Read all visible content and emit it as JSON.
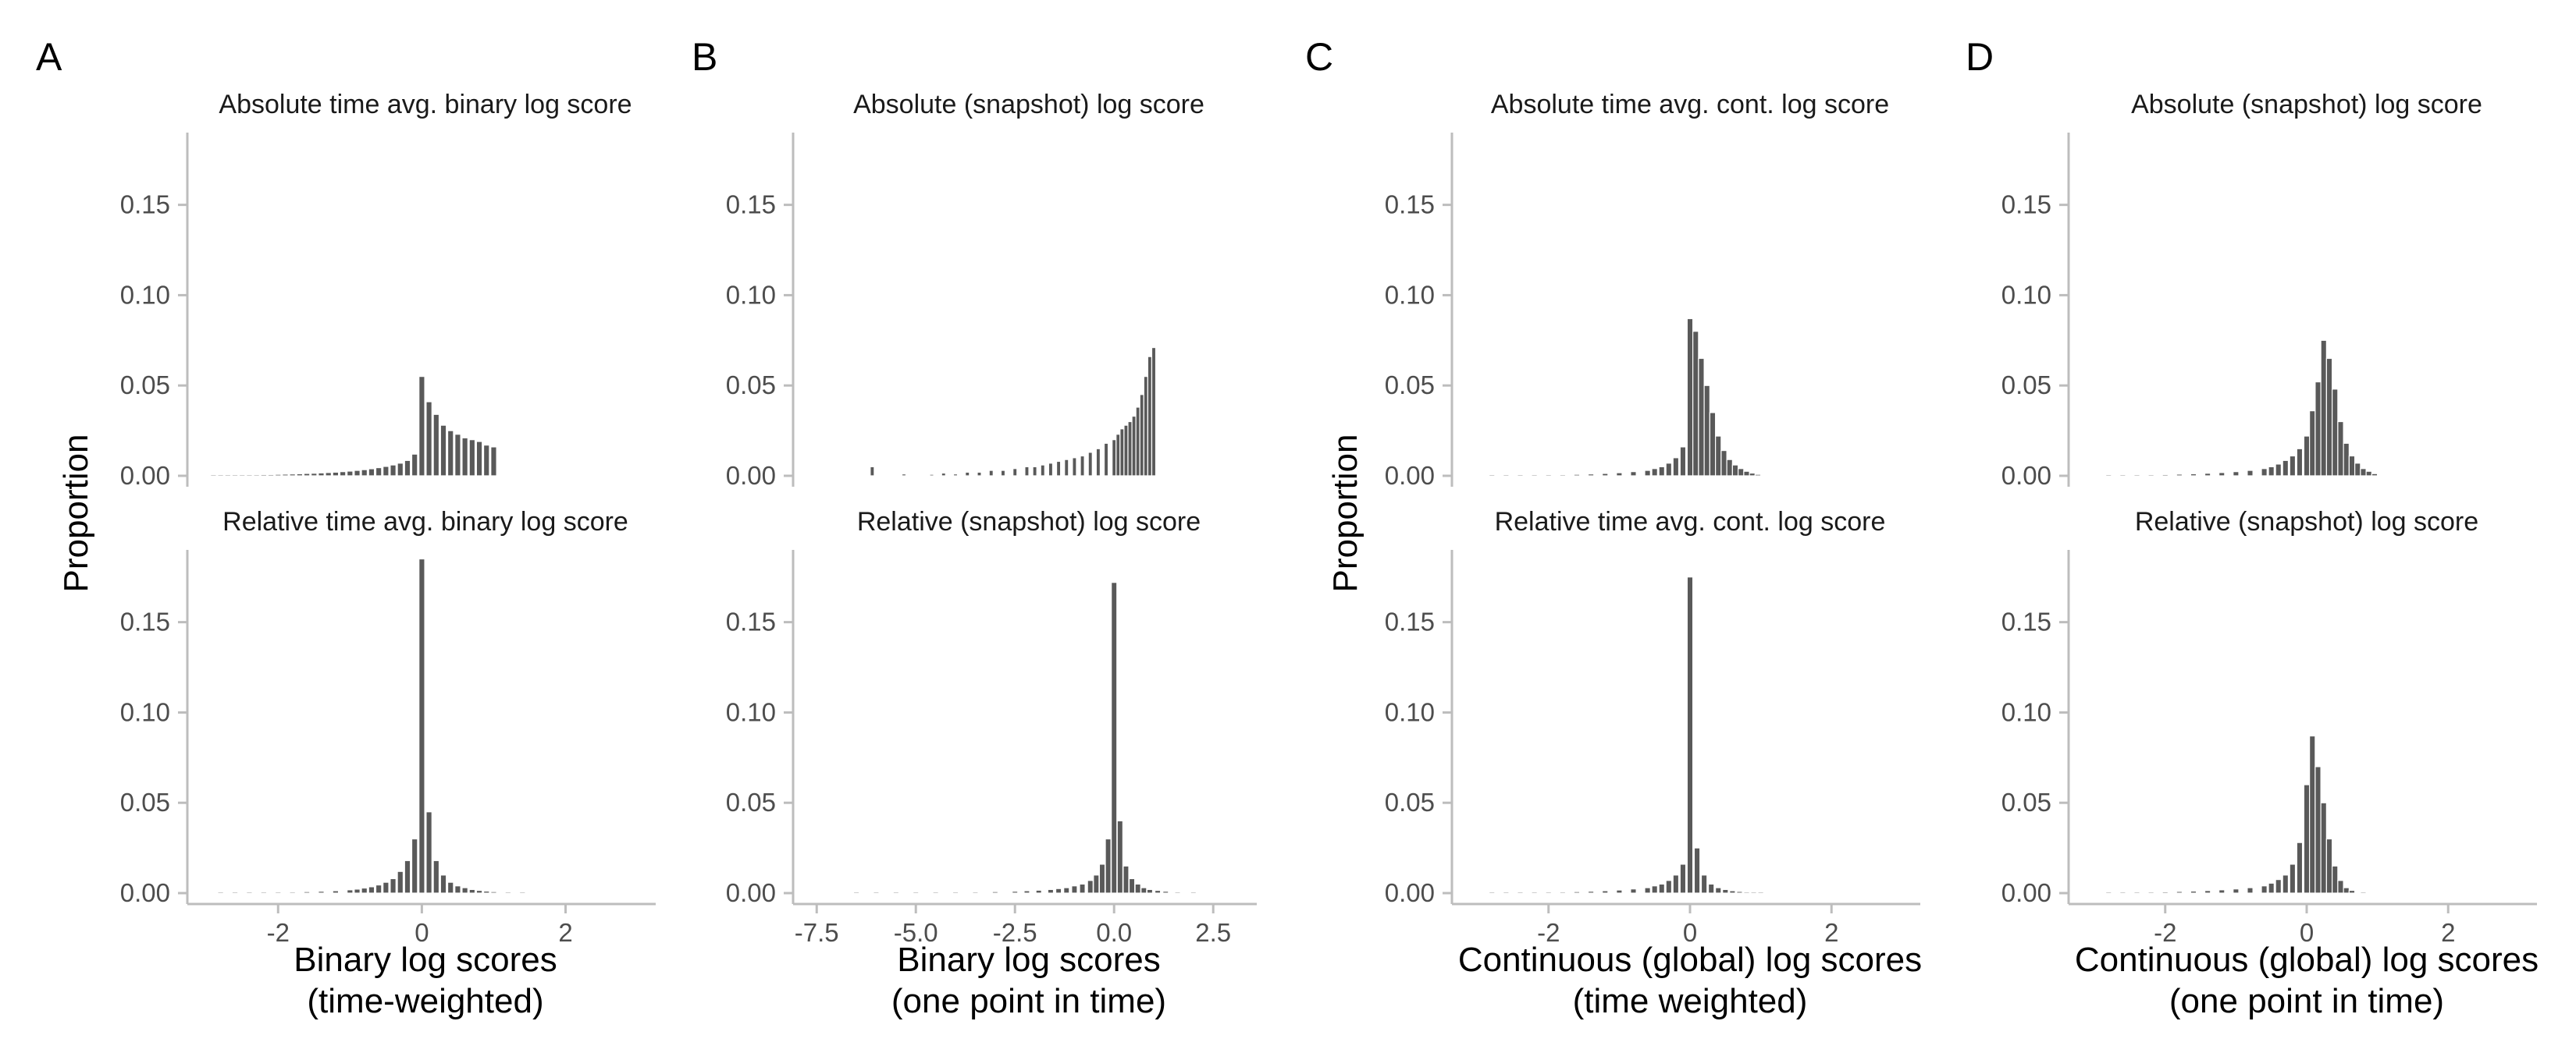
{
  "chart_data": [
    {
      "type": "bar",
      "panel": "A",
      "xlabel": [
        "Binary log scores",
        "(time-weighted)"
      ],
      "ylabel": "Proportion",
      "xlim": [
        -3.1,
        3.2
      ],
      "xticks": [
        -2,
        0,
        2
      ],
      "ylim": [
        0,
        0.19
      ],
      "yticks": [
        "0.00",
        "0.05",
        "0.10",
        "0.15"
      ],
      "facets": [
        {
          "title": "Absolute time avg. binary log score",
          "bin_width": 0.08,
          "x": [
            -2.9,
            -2.8,
            -2.7,
            -2.6,
            -2.5,
            -2.4,
            -2.3,
            -2.2,
            -2.1,
            -2.0,
            -1.9,
            -1.8,
            -1.7,
            -1.6,
            -1.5,
            -1.4,
            -1.3,
            -1.2,
            -1.1,
            -1.0,
            -0.9,
            -0.8,
            -0.7,
            -0.6,
            -0.5,
            -0.4,
            -0.3,
            -0.2,
            -0.1,
            0.0,
            0.1,
            0.2,
            0.3,
            0.4,
            0.5,
            0.6,
            0.7,
            0.8,
            0.9,
            1.0
          ],
          "values": [
            0.0003,
            0.0003,
            0.0004,
            0.0004,
            0.0005,
            0.0005,
            0.0006,
            0.0007,
            0.0007,
            0.0008,
            0.0009,
            0.001,
            0.0011,
            0.0013,
            0.0014,
            0.0016,
            0.0018,
            0.002,
            0.0023,
            0.0026,
            0.003,
            0.0034,
            0.0039,
            0.0045,
            0.0052,
            0.006,
            0.007,
            0.0085,
            0.012,
            0.055,
            0.041,
            0.034,
            0.028,
            0.025,
            0.023,
            0.021,
            0.02,
            0.019,
            0.017,
            0.016
          ]
        },
        {
          "title": "Relative time avg. binary log score",
          "bin_width": 0.08,
          "x": [
            -2.8,
            -2.6,
            -2.4,
            -2.2,
            -2.0,
            -1.8,
            -1.6,
            -1.4,
            -1.2,
            -1.0,
            -0.9,
            -0.8,
            -0.7,
            -0.6,
            -0.5,
            -0.4,
            -0.3,
            -0.2,
            -0.1,
            0.0,
            0.1,
            0.2,
            0.3,
            0.4,
            0.5,
            0.6,
            0.7,
            0.8,
            0.9,
            1.0,
            1.2,
            1.4
          ],
          "values": [
            0.0002,
            0.0002,
            0.0003,
            0.0004,
            0.0005,
            0.0006,
            0.0008,
            0.001,
            0.0013,
            0.0018,
            0.0022,
            0.0028,
            0.0035,
            0.0045,
            0.006,
            0.008,
            0.012,
            0.018,
            0.03,
            0.185,
            0.045,
            0.018,
            0.01,
            0.006,
            0.004,
            0.003,
            0.002,
            0.0015,
            0.0011,
            0.0008,
            0.0005,
            0.0003
          ]
        }
      ]
    },
    {
      "type": "bar",
      "panel": "B",
      "xlabel": [
        "Binary log scores",
        "(one point in time)"
      ],
      "ylabel": "",
      "xlim": [
        -7.8,
        3.5
      ],
      "xticks": [
        "-7.5",
        "-5.0",
        "-2.5",
        "0.0",
        "2.5"
      ],
      "ylim": [
        0,
        0.19
      ],
      "yticks": [
        "0.00",
        "0.05",
        "0.10",
        "0.15"
      ],
      "facets": [
        {
          "title": "Absolute (snapshot) log score",
          "bin_width": 0.1,
          "x": [
            -6.1,
            -5.3,
            -4.6,
            -4.3,
            -4.0,
            -3.7,
            -3.4,
            -3.1,
            -2.8,
            -2.5,
            -2.2,
            -2.0,
            -1.8,
            -1.6,
            -1.4,
            -1.2,
            -1.0,
            -0.8,
            -0.6,
            -0.4,
            -0.2,
            0.0,
            0.1,
            0.2,
            0.3,
            0.4,
            0.5,
            0.6,
            0.7,
            0.8,
            0.9,
            1.0
          ],
          "values": [
            0.005,
            0.001,
            0.0008,
            0.0015,
            0.001,
            0.002,
            0.002,
            0.003,
            0.003,
            0.004,
            0.005,
            0.005,
            0.006,
            0.007,
            0.008,
            0.009,
            0.01,
            0.011,
            0.013,
            0.015,
            0.018,
            0.02,
            0.023,
            0.026,
            0.028,
            0.03,
            0.033,
            0.038,
            0.045,
            0.055,
            0.066,
            0.071
          ]
        },
        {
          "title": "Relative (snapshot) log score",
          "bin_width": 0.14,
          "x": [
            -6.5,
            -6.0,
            -5.5,
            -5.0,
            -4.5,
            -4.0,
            -3.5,
            -3.0,
            -2.5,
            -2.2,
            -1.9,
            -1.6,
            -1.4,
            -1.2,
            -1.0,
            -0.8,
            -0.6,
            -0.45,
            -0.3,
            -0.15,
            0.0,
            0.15,
            0.3,
            0.45,
            0.6,
            0.75,
            0.9,
            1.1,
            1.3,
            1.6,
            2.0
          ],
          "values": [
            0.0002,
            0.0002,
            0.0003,
            0.0003,
            0.0004,
            0.0005,
            0.0006,
            0.0008,
            0.001,
            0.0013,
            0.0016,
            0.002,
            0.0025,
            0.003,
            0.004,
            0.005,
            0.007,
            0.01,
            0.016,
            0.03,
            0.172,
            0.04,
            0.015,
            0.008,
            0.005,
            0.003,
            0.002,
            0.0015,
            0.001,
            0.0006,
            0.0003
          ]
        }
      ]
    },
    {
      "type": "bar",
      "panel": "C",
      "xlabel": [
        "Continuous (global) log scores",
        "(time weighted)"
      ],
      "ylabel": "Proportion",
      "xlim": [
        -3.2,
        3.2
      ],
      "xticks": [
        -2,
        0,
        2
      ],
      "ylim": [
        0,
        0.19
      ],
      "yticks": [
        "0.00",
        "0.05",
        "0.10",
        "0.15"
      ],
      "facets": [
        {
          "title": "Absolute time avg. cont. log score",
          "bin_width": 0.08,
          "x": [
            -2.8,
            -2.6,
            -2.4,
            -2.2,
            -2.0,
            -1.8,
            -1.6,
            -1.4,
            -1.2,
            -1.0,
            -0.8,
            -0.6,
            -0.5,
            -0.4,
            -0.3,
            -0.2,
            -0.1,
            0.0,
            0.08,
            0.16,
            0.24,
            0.32,
            0.4,
            0.48,
            0.56,
            0.64,
            0.72,
            0.8,
            0.88,
            0.96
          ],
          "values": [
            0.0002,
            0.0003,
            0.0003,
            0.0004,
            0.0005,
            0.0006,
            0.0008,
            0.001,
            0.0013,
            0.0017,
            0.0023,
            0.003,
            0.004,
            0.005,
            0.007,
            0.01,
            0.016,
            0.087,
            0.08,
            0.065,
            0.05,
            0.035,
            0.022,
            0.014,
            0.009,
            0.006,
            0.004,
            0.0025,
            0.0015,
            0.0008
          ]
        },
        {
          "title": "Relative time avg. cont. log score",
          "bin_width": 0.08,
          "x": [
            -2.8,
            -2.6,
            -2.4,
            -2.2,
            -2.0,
            -1.8,
            -1.6,
            -1.4,
            -1.2,
            -1.0,
            -0.8,
            -0.6,
            -0.5,
            -0.4,
            -0.3,
            -0.2,
            -0.1,
            0.0,
            0.1,
            0.2,
            0.3,
            0.4,
            0.5,
            0.6,
            0.7,
            0.8,
            0.9,
            1.0
          ],
          "values": [
            0.0002,
            0.0003,
            0.0003,
            0.0004,
            0.0005,
            0.0006,
            0.0008,
            0.001,
            0.0013,
            0.0017,
            0.0023,
            0.003,
            0.004,
            0.005,
            0.007,
            0.01,
            0.016,
            0.175,
            0.025,
            0.01,
            0.005,
            0.003,
            0.002,
            0.0013,
            0.0009,
            0.0006,
            0.0004,
            0.0003
          ]
        }
      ]
    },
    {
      "type": "bar",
      "panel": "D",
      "xlabel": [
        "Continuous (global) log scores",
        "(one point in time)"
      ],
      "ylabel": "",
      "xlim": [
        -3.2,
        3.2
      ],
      "xticks": [
        -2,
        0,
        2
      ],
      "ylim": [
        0,
        0.19
      ],
      "yticks": [
        "0.00",
        "0.05",
        "0.10",
        "0.15"
      ],
      "facets": [
        {
          "title": "Absolute (snapshot) log score",
          "bin_width": 0.08,
          "x": [
            -2.8,
            -2.6,
            -2.4,
            -2.2,
            -2.0,
            -1.8,
            -1.6,
            -1.4,
            -1.2,
            -1.0,
            -0.8,
            -0.6,
            -0.5,
            -0.4,
            -0.3,
            -0.2,
            -0.1,
            0.0,
            0.08,
            0.16,
            0.24,
            0.32,
            0.4,
            0.48,
            0.56,
            0.64,
            0.72,
            0.8,
            0.88,
            0.96
          ],
          "values": [
            0.0003,
            0.0004,
            0.0005,
            0.0006,
            0.0007,
            0.0009,
            0.0011,
            0.0014,
            0.0018,
            0.0023,
            0.003,
            0.004,
            0.005,
            0.0065,
            0.0085,
            0.011,
            0.015,
            0.022,
            0.036,
            0.052,
            0.075,
            0.065,
            0.048,
            0.03,
            0.018,
            0.011,
            0.007,
            0.004,
            0.0025,
            0.0012
          ]
        },
        {
          "title": "Relative (snapshot) log score",
          "bin_width": 0.08,
          "x": [
            -2.8,
            -2.6,
            -2.4,
            -2.2,
            -2.0,
            -1.8,
            -1.6,
            -1.4,
            -1.2,
            -1.0,
            -0.8,
            -0.6,
            -0.5,
            -0.4,
            -0.3,
            -0.2,
            -0.1,
            0.0,
            0.08,
            0.16,
            0.24,
            0.32,
            0.4,
            0.48,
            0.56,
            0.64,
            0.8
          ],
          "values": [
            0.0003,
            0.0004,
            0.0005,
            0.0006,
            0.0007,
            0.0009,
            0.0011,
            0.0014,
            0.0018,
            0.0023,
            0.003,
            0.004,
            0.0055,
            0.0075,
            0.01,
            0.016,
            0.028,
            0.06,
            0.087,
            0.07,
            0.05,
            0.03,
            0.015,
            0.007,
            0.003,
            0.0015,
            0.0006
          ]
        }
      ]
    }
  ]
}
